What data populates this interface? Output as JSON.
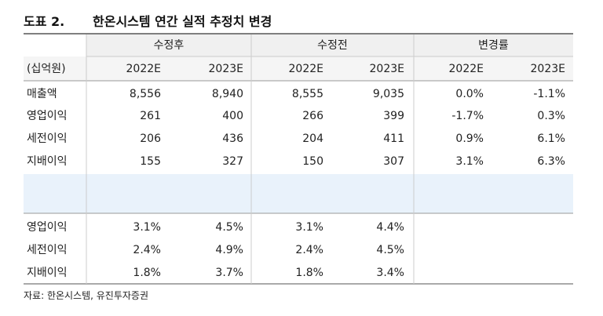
{
  "title": {
    "label": "도표 2.",
    "text": "한온시스템 연간 실적 추정치 변경"
  },
  "table": {
    "unit": "(십억원)",
    "groups": [
      "수정후",
      "수정전",
      "변경률"
    ],
    "columns": [
      "2022E",
      "2023E",
      "2022E",
      "2023E",
      "2022E",
      "2023E"
    ],
    "rows": [
      [
        "매출액",
        "8,556",
        "8,940",
        "8,555",
        "9,035",
        "0.0%",
        "-1.1%"
      ],
      [
        "영업이익",
        "261",
        "400",
        "266",
        "399",
        "-1.7%",
        "0.3%"
      ],
      [
        "세전이익",
        "206",
        "436",
        "204",
        "411",
        "0.9%",
        "6.1%"
      ],
      [
        "지배이익",
        "155",
        "327",
        "150",
        "307",
        "3.1%",
        "6.3%"
      ]
    ],
    "ratio_rows": [
      [
        "영업이익",
        "3.1%",
        "4.5%",
        "3.1%",
        "4.4%"
      ],
      [
        "세전이익",
        "2.4%",
        "4.9%",
        "2.4%",
        "4.5%"
      ],
      [
        "지배이익",
        "1.8%",
        "3.7%",
        "1.8%",
        "3.4%"
      ]
    ]
  },
  "source": "자료: 한온시스템, 유진투자증권"
}
